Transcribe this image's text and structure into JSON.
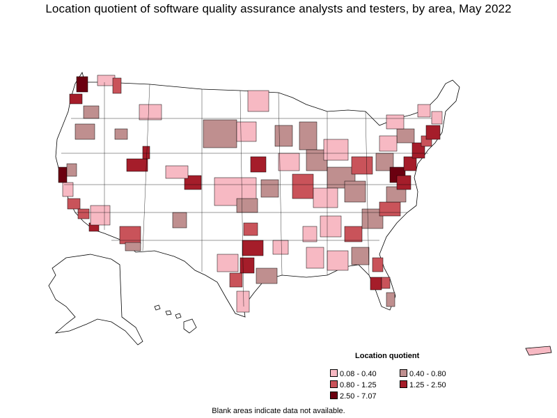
{
  "title": "Location quotient of software quality assurance analysts and testers, by area, May 2022",
  "legend": {
    "title": "Location quotient",
    "items": [
      {
        "label": "0.08 - 0.40",
        "color": "#f7b9c3"
      },
      {
        "label": "0.40 - 0.80",
        "color": "#bf8f8f"
      },
      {
        "label": "0.80 - 1.25",
        "color": "#c9535a"
      },
      {
        "label": "1.25 - 2.50",
        "color": "#a51d2a"
      },
      {
        "label": "2.50 - 7.07",
        "color": "#6b0010"
      }
    ]
  },
  "footnote": "Blank areas indicate data not available.",
  "colors": {
    "outline": "#000000",
    "blank": "#ffffff"
  }
}
